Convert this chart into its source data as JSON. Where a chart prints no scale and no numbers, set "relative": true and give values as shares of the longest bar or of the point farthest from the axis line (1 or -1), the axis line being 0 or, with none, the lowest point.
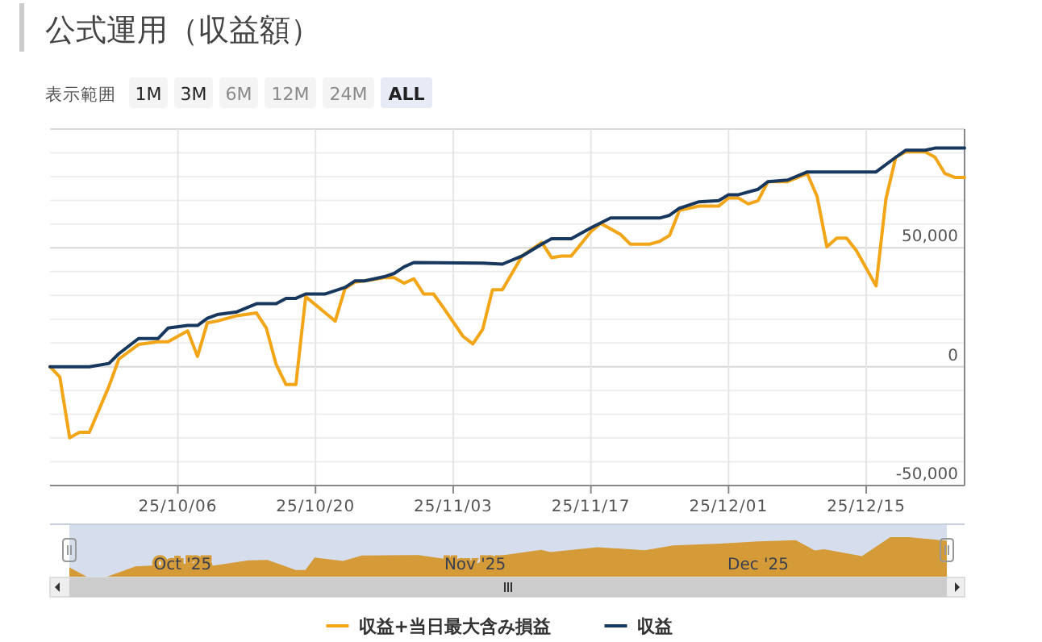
{
  "chart_data": [
    {
      "type": "line",
      "title": "公式運用（収益額）",
      "annotations": [
        "表示範囲",
        "1M",
        "3M",
        "6M",
        "12M",
        "24M",
        "ALL"
      ],
      "xlim": [
        "2025-09-23",
        "2025-12-25"
      ],
      "xticks": [
        {
          "value": "2025-10-06",
          "label": "25/10/06"
        },
        {
          "value": "2025-10-20",
          "label": "25/10/20"
        },
        {
          "value": "2025-11-03",
          "label": "25/11/03"
        },
        {
          "value": "2025-11-17",
          "label": "25/11/17"
        },
        {
          "value": "2025-12-01",
          "label": "25/12/01"
        },
        {
          "value": "2025-12-15",
          "label": "25/12/15"
        }
      ],
      "ylim": [
        -50000,
        100000
      ],
      "yticks": [
        {
          "value": -50000,
          "label": "-50,000"
        },
        {
          "value": -40000,
          "label": null
        },
        {
          "value": -30000,
          "label": null
        },
        {
          "value": -20000,
          "label": null
        },
        {
          "value": -10000,
          "label": null
        },
        {
          "value": 0,
          "label": "0"
        },
        {
          "value": 10000,
          "label": null
        },
        {
          "value": 20000,
          "label": null
        },
        {
          "value": 30000,
          "label": null
        },
        {
          "value": 40000,
          "label": null
        },
        {
          "value": 50000,
          "label": "50,000"
        },
        {
          "value": 60000,
          "label": null
        },
        {
          "value": 70000,
          "label": null
        },
        {
          "value": 80000,
          "label": null
        },
        {
          "value": 90000,
          "label": null
        },
        {
          "value": 100000,
          "label": null
        }
      ],
      "grid": true,
      "legend": "bottom",
      "marker": "none",
      "line_style": "solid",
      "series": [
        {
          "name": "収益+当日最大含み損益",
          "color": "#f2a516",
          "x": [
            "2025-09-23",
            "2025-09-24",
            "2025-09-25",
            "2025-09-26",
            "2025-09-27",
            "2025-09-29",
            "2025-09-30",
            "2025-10-02",
            "2025-10-04",
            "2025-10-05",
            "2025-10-07",
            "2025-10-08",
            "2025-10-09",
            "2025-10-10",
            "2025-10-12",
            "2025-10-14",
            "2025-10-15",
            "2025-10-16",
            "2025-10-17",
            "2025-10-18",
            "2025-10-19",
            "2025-10-21",
            "2025-10-22",
            "2025-10-23",
            "2025-10-24",
            "2025-10-25",
            "2025-10-27",
            "2025-10-28",
            "2025-10-29",
            "2025-10-30",
            "2025-10-31",
            "2025-11-01",
            "2025-11-02",
            "2025-11-04",
            "2025-11-05",
            "2025-11-06",
            "2025-11-07",
            "2025-11-08",
            "2025-11-10",
            "2025-11-12",
            "2025-11-13",
            "2025-11-14",
            "2025-11-15",
            "2025-11-17",
            "2025-11-18",
            "2025-11-20",
            "2025-11-21",
            "2025-11-23",
            "2025-11-24",
            "2025-11-25",
            "2025-11-26",
            "2025-11-28",
            "2025-11-30",
            "2025-12-01",
            "2025-12-02",
            "2025-12-03",
            "2025-12-04",
            "2025-12-05",
            "2025-12-07",
            "2025-12-09",
            "2025-12-10",
            "2025-12-11",
            "2025-12-12",
            "2025-12-13",
            "2025-12-14",
            "2025-12-16",
            "2025-12-17",
            "2025-12-18",
            "2025-12-19",
            "2025-12-21",
            "2025-12-22",
            "2025-12-23",
            "2025-12-24",
            "2025-12-25"
          ],
          "values": [
            0,
            -4320,
            -29920,
            -27620,
            -27620,
            -8220,
            3200,
            9360,
            10500,
            10500,
            15070,
            4340,
            18490,
            19180,
            21460,
            22600,
            16210,
            910,
            -7530,
            -7530,
            29450,
            22600,
            19180,
            32880,
            35610,
            36090,
            37440,
            37440,
            35160,
            36980,
            30590,
            30590,
            24890,
            12780,
            9590,
            15750,
            32420,
            32420,
            46570,
            52270,
            45890,
            46570,
            46570,
            56850,
            60270,
            55700,
            51580,
            51580,
            52740,
            55240,
            65750,
            67580,
            67580,
            71000,
            71000,
            68490,
            69860,
            77850,
            77850,
            81270,
            71690,
            50450,
            54110,
            54110,
            48850,
            34020,
            70550,
            88130,
            90410,
            90410,
            88130,
            81270,
            79680,
            79680
          ]
        },
        {
          "name": "収益",
          "color": "#17375e",
          "x": [
            "2025-09-23",
            "2025-09-27",
            "2025-09-29",
            "2025-09-30",
            "2025-10-02",
            "2025-10-04",
            "2025-10-05",
            "2025-10-07",
            "2025-10-08",
            "2025-10-09",
            "2025-10-10",
            "2025-10-12",
            "2025-10-14",
            "2025-10-16",
            "2025-10-17",
            "2025-10-18",
            "2025-10-19",
            "2025-10-21",
            "2025-10-23",
            "2025-10-24",
            "2025-10-25",
            "2025-10-27",
            "2025-10-28",
            "2025-10-29",
            "2025-10-30",
            "2025-11-06",
            "2025-11-08",
            "2025-11-10",
            "2025-11-12",
            "2025-11-13",
            "2025-11-15",
            "2025-11-17",
            "2025-11-19",
            "2025-11-24",
            "2025-11-25",
            "2025-11-26",
            "2025-11-28",
            "2025-11-30",
            "2025-12-01",
            "2025-12-02",
            "2025-12-04",
            "2025-12-05",
            "2025-12-07",
            "2025-12-09",
            "2025-12-16",
            "2025-12-18",
            "2025-12-19",
            "2025-12-21",
            "2025-12-22",
            "2025-12-25"
          ],
          "values": [
            0,
            0,
            1370,
            5480,
            11850,
            11850,
            16230,
            17330,
            17330,
            20340,
            21920,
            23080,
            26500,
            26500,
            28770,
            28770,
            30610,
            30610,
            33350,
            36090,
            36090,
            37880,
            39250,
            41990,
            43830,
            43600,
            43150,
            46570,
            51580,
            53880,
            53880,
            58450,
            62560,
            62560,
            63700,
            66660,
            69400,
            69860,
            72380,
            72380,
            74650,
            77850,
            78540,
            81960,
            81960,
            88130,
            91090,
            91090,
            92000,
            92000
          ]
        }
      ]
    },
    {
      "type": "area",
      "relative": true,
      "color": "#d49b38",
      "tick_labels": "x",
      "xlim": [
        "2025-09-23",
        "2025-12-25"
      ],
      "xticks": [
        {
          "value": "2025-10-05",
          "label": "Oct '25"
        },
        {
          "value": "2025-11-05",
          "label": "Nov '25"
        },
        {
          "value": "2025-12-05",
          "label": "Dec '25"
        }
      ],
      "x": [
        "2025-09-23",
        "2025-09-25",
        "2025-09-27",
        "2025-09-30",
        "2025-10-05",
        "2025-10-07",
        "2025-10-08",
        "2025-10-12",
        "2025-10-14",
        "2025-10-17",
        "2025-10-18",
        "2025-10-19",
        "2025-10-22",
        "2025-10-24",
        "2025-10-30",
        "2025-11-02",
        "2025-11-05",
        "2025-11-07",
        "2025-11-12",
        "2025-11-13",
        "2025-11-18",
        "2025-11-23",
        "2025-11-26",
        "2025-12-01",
        "2025-12-05",
        "2025-12-09",
        "2025-12-11",
        "2025-12-12",
        "2025-12-16",
        "2025-12-19",
        "2025-12-21",
        "2025-12-25"
      ],
      "values": [
        0.249,
        0,
        0.019,
        0.275,
        0.336,
        0.374,
        0.285,
        0.427,
        0.437,
        0.186,
        0.186,
        0.493,
        0.408,
        0.545,
        0.556,
        0.456,
        0.328,
        0.518,
        0.683,
        0.63,
        0.75,
        0.677,
        0.795,
        0.839,
        0.896,
        0.924,
        0.668,
        0.698,
        0.531,
        1,
        1,
        0.911
      ]
    }
  ]
}
